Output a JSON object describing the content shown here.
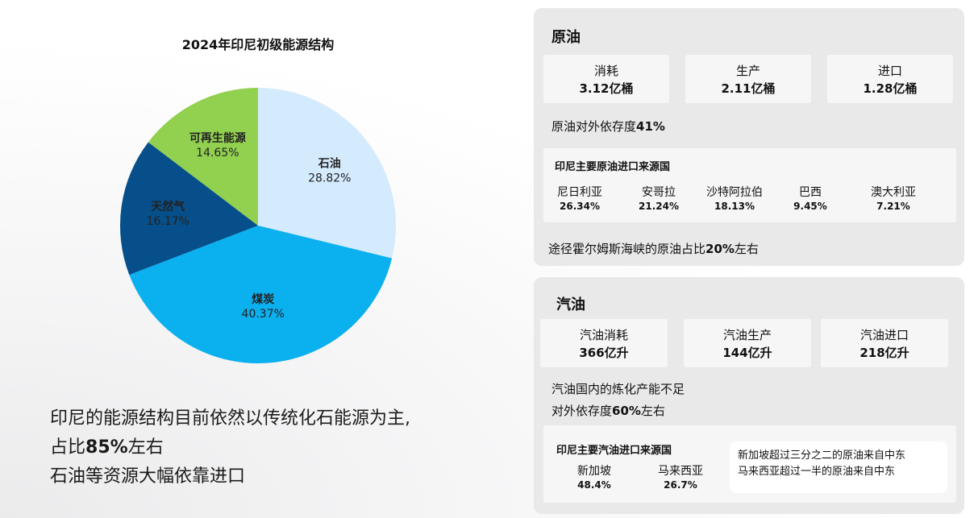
{
  "chart_data": {
    "type": "pie",
    "title": "2024年印尼初级能源结构",
    "slices": [
      {
        "label": "石油",
        "value": 28.82,
        "value_label": "28.82%",
        "color": "#d4eafd"
      },
      {
        "label": "煤炭",
        "value": 40.37,
        "value_label": "40.37%",
        "color": "#0bb0ef"
      },
      {
        "label": "天然气",
        "value": 16.17,
        "value_label": "16.17%",
        "color": "#064f8a"
      },
      {
        "label": "可再生能源",
        "value": 14.65,
        "value_label": "14.65%",
        "color": "#92d050"
      }
    ]
  },
  "summary": {
    "line1": "印尼的能源结构目前依然以传统化石能源为主,",
    "line2_pre": "占比",
    "line2_bold": "85%",
    "line2_post": "左右",
    "line3": "石油等资源大幅依靠进口"
  },
  "crude": {
    "title": "原油",
    "stats": [
      {
        "label": "消耗",
        "value": "3.12亿桶"
      },
      {
        "label": "生产",
        "value": "2.11亿桶"
      },
      {
        "label": "进口",
        "value": "1.28亿桶"
      }
    ],
    "dependency_pre": "原油对外依存度",
    "dependency_val": "41%",
    "sources_title": "印尼主要原油进口来源国",
    "sources": [
      {
        "name": "尼日利亚",
        "pct": "26.34%"
      },
      {
        "name": "安哥拉",
        "pct": "21.24%"
      },
      {
        "name": "沙特阿拉伯",
        "pct": "18.13%"
      },
      {
        "name": "巴西",
        "pct": "9.45%"
      },
      {
        "name": "澳大利亚",
        "pct": "7.21%"
      }
    ],
    "hormuz_pre": "途径霍尔姆斯海峡的原油占比",
    "hormuz_val": "20%",
    "hormuz_post": "左右"
  },
  "gasoline": {
    "title": "汽油",
    "stats": [
      {
        "label": "汽油消耗",
        "value": "366亿升"
      },
      {
        "label": "汽油生产",
        "value": "144亿升"
      },
      {
        "label": "汽油进口",
        "value": "218亿升"
      }
    ],
    "line1": "汽油国内的炼化产能不足",
    "dependency_pre": "对外依存度",
    "dependency_val": "60%",
    "dependency_post": "左右",
    "sources_title": "印尼主要汽油进口来源国",
    "sources": [
      {
        "name": "新加坡",
        "pct": "48.4%"
      },
      {
        "name": "马来西亚",
        "pct": "26.7%"
      }
    ],
    "note_line1": "新加坡超过三分之二的原油来自中东",
    "note_line2": "马来西亚超过一半的原油来自中东"
  }
}
